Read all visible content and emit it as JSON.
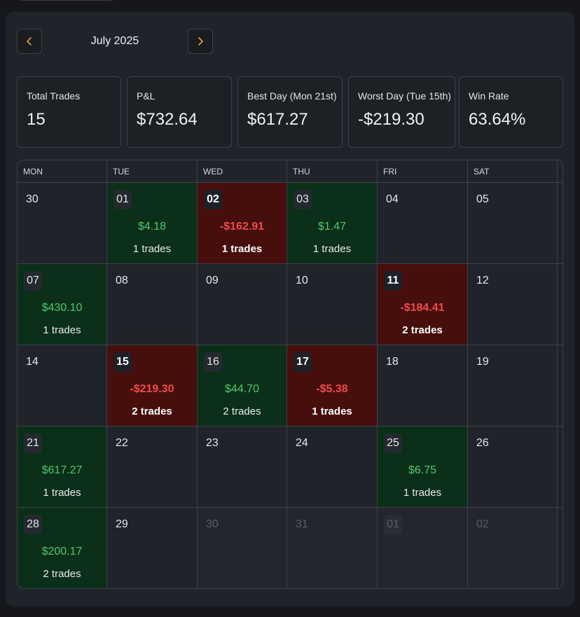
{
  "header": {
    "month": "July 2025"
  },
  "stats": [
    {
      "label": "Total Trades",
      "value": "15"
    },
    {
      "label": "P&L",
      "value": "$732.64"
    },
    {
      "label": "Best Day (Mon 21st)",
      "value": "$617.27"
    },
    {
      "label": "Worst Day (Tue 15th)",
      "value": "-$219.30"
    },
    {
      "label": "Win Rate",
      "value": "63.64%"
    }
  ],
  "weekdays": [
    "MON",
    "TUE",
    "WED",
    "THU",
    "FRI",
    "SAT"
  ],
  "weeks": [
    [
      {
        "date": "30"
      },
      {
        "date": "01",
        "pnl": "$4.18",
        "trades": "1 trades"
      },
      {
        "date": "02",
        "pnl": "-$162.91",
        "trades": "1 trades"
      },
      {
        "date": "03",
        "pnl": "$1.47",
        "trades": "1 trades"
      },
      {
        "date": "04"
      },
      {
        "date": "05"
      }
    ],
    [
      {
        "date": "07",
        "pnl": "$430.10",
        "trades": "1 trades"
      },
      {
        "date": "08"
      },
      {
        "date": "09"
      },
      {
        "date": "10"
      },
      {
        "date": "11",
        "pnl": "-$184.41",
        "trades": "2 trades"
      },
      {
        "date": "12"
      }
    ],
    [
      {
        "date": "14"
      },
      {
        "date": "15",
        "pnl": "-$219.30",
        "trades": "2 trades"
      },
      {
        "date": "16",
        "pnl": "$44.70",
        "trades": "2 trades"
      },
      {
        "date": "17",
        "pnl": "-$5.38",
        "trades": "1 trades"
      },
      {
        "date": "18"
      },
      {
        "date": "19"
      }
    ],
    [
      {
        "date": "21",
        "pnl": "$617.27",
        "trades": "1 trades"
      },
      {
        "date": "22"
      },
      {
        "date": "23"
      },
      {
        "date": "24"
      },
      {
        "date": "25",
        "pnl": "$6.75",
        "trades": "1 trades"
      },
      {
        "date": "26"
      }
    ],
    [
      {
        "date": "28",
        "pnl": "$200.17",
        "trades": "2 trades"
      },
      {
        "date": "29"
      },
      {
        "date": "30"
      },
      {
        "date": "31"
      },
      {
        "date": "01"
      },
      {
        "date": "02"
      }
    ]
  ],
  "colors": {
    "profit": "#4cc96e",
    "loss": "#ef4b4b",
    "profit_bg": "#0b2f19",
    "loss_bg": "#470e0e"
  }
}
